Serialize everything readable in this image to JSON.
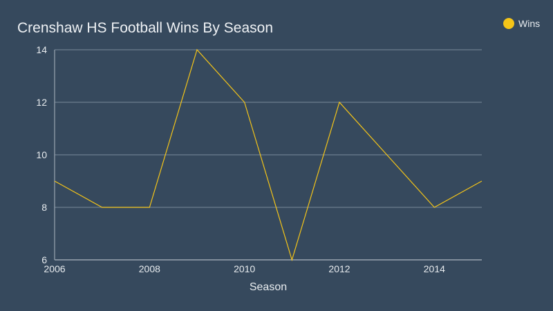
{
  "chart_data": {
    "type": "line",
    "title": "Crenshaw HS Football Wins By Season",
    "xlabel": "Season",
    "ylabel": "",
    "x": [
      2006,
      2007,
      2008,
      2009,
      2010,
      2011,
      2012,
      2013,
      2014,
      2015
    ],
    "series": [
      {
        "name": "Wins",
        "color": "#f5c518",
        "values": [
          9,
          8,
          8,
          14,
          12,
          6,
          12,
          10,
          8,
          9
        ]
      }
    ],
    "xlim": [
      2006,
      2015
    ],
    "ylim": [
      6,
      14
    ],
    "x_ticks": [
      2006,
      2008,
      2010,
      2012,
      2014
    ],
    "y_ticks": [
      6,
      8,
      10,
      12,
      14
    ],
    "grid": "horizontal",
    "legend_position": "top-right",
    "colors": {
      "background": "#36495d",
      "grid": "#6e7f8f",
      "axis": "#9aa6b1",
      "text": "#e8ecef"
    }
  }
}
